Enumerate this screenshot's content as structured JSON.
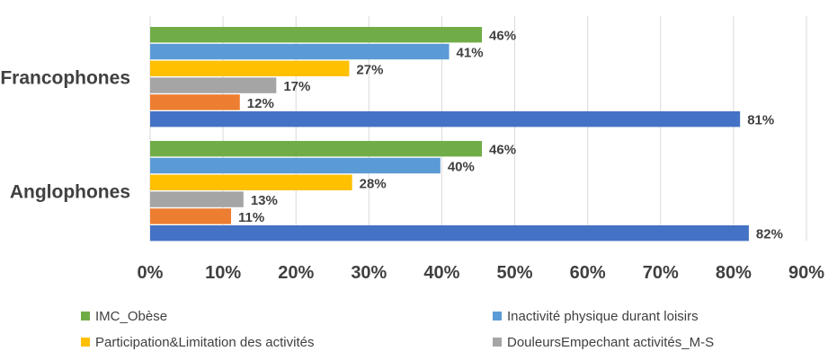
{
  "chart_data": {
    "type": "bar",
    "orientation": "horizontal",
    "categories": [
      "Francophones",
      "Anglophones"
    ],
    "xlim": [
      0,
      90
    ],
    "ticks": [
      0,
      10,
      20,
      30,
      40,
      50,
      60,
      70,
      80,
      90
    ],
    "tick_labels": [
      "0%",
      "10%",
      "20%",
      "30%",
      "40%",
      "50%",
      "60%",
      "70%",
      "80%",
      "90%"
    ],
    "grid": true,
    "legend_position": "bottom",
    "series": [
      {
        "name": "IMC_Obèse",
        "color": "#70AD47",
        "values": [
          45.5,
          45.5
        ],
        "labels": [
          "46%",
          "46%"
        ]
      },
      {
        "name": "Inactivité physique durant loisirs",
        "color": "#5B9BD5",
        "values": [
          41,
          39.8
        ],
        "labels": [
          "41%",
          "40%"
        ]
      },
      {
        "name": "Participation&Limitation des activités",
        "color": "#FFC000",
        "values": [
          27.3,
          27.7
        ],
        "labels": [
          "27%",
          "28%"
        ]
      },
      {
        "name": "DouleursEmpechant activités_M-S",
        "color": "#A5A5A5",
        "values": [
          17.3,
          12.8
        ],
        "labels": [
          "17%",
          "13%"
        ]
      },
      {
        "name": "",
        "color": "#ED7D31",
        "values": [
          12.3,
          11.1
        ],
        "labels": [
          "12%",
          "11%"
        ]
      },
      {
        "name": "",
        "color": "#4472C4",
        "values": [
          80.9,
          82.1
        ],
        "labels": [
          "81%",
          "82%"
        ]
      }
    ],
    "legend_entries": [
      {
        "label": "IMC_Obèse",
        "color": "#70AD47"
      },
      {
        "label": "Inactivité physique durant loisirs",
        "color": "#5B9BD5"
      },
      {
        "label": "Participation&Limitation des activités",
        "color": "#FFC000"
      },
      {
        "label": "DouleursEmpechant activités_M-S",
        "color": "#A5A5A5"
      }
    ]
  }
}
